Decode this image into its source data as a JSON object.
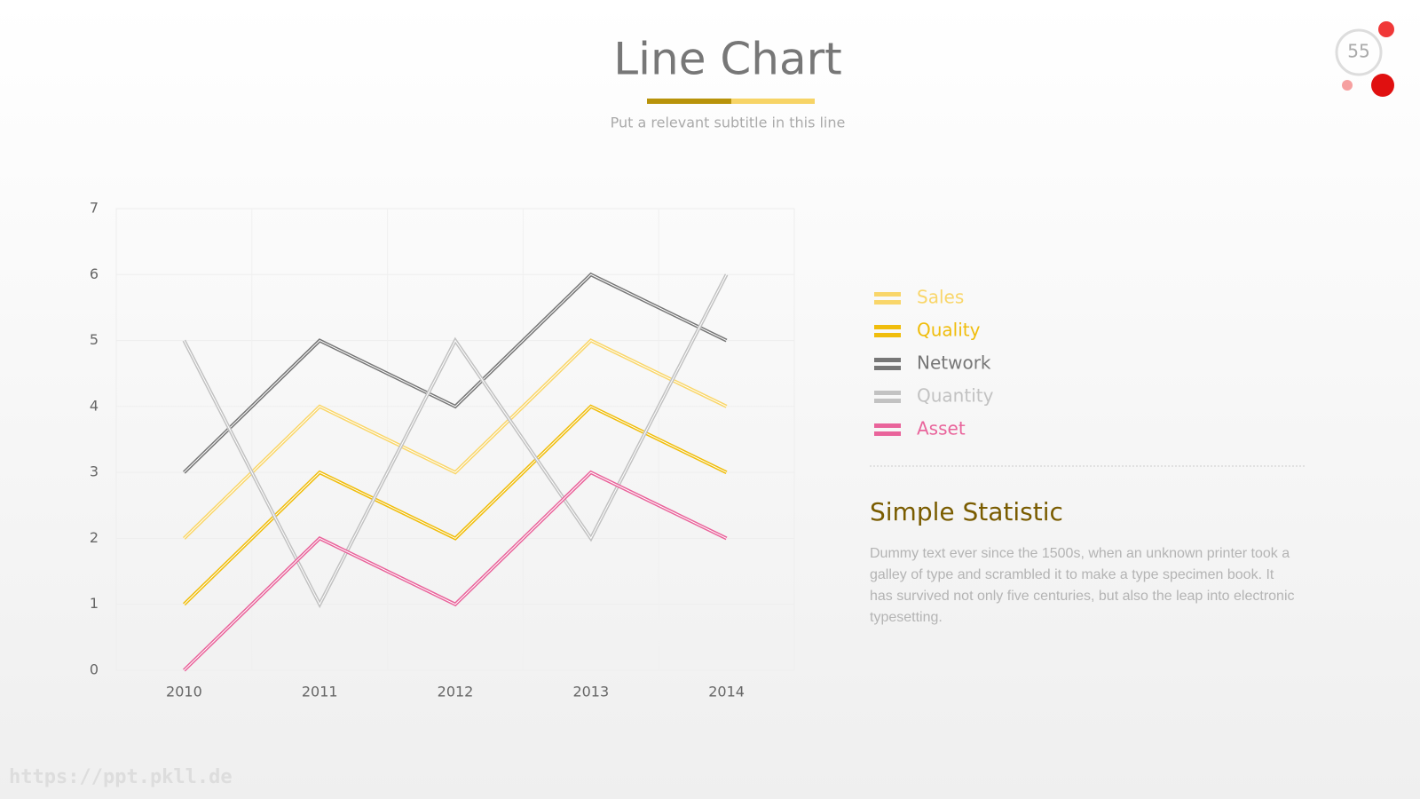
{
  "slide": {
    "subtitle": "Put a relevant subtitle in this line",
    "page_number": 55,
    "heading": "Simple Statistic",
    "paragraph": "Dummy text ever since the 1500s, when an unknown printer took a galley of type and scrambled it to make a type specimen book. It has survived not only five centuries, but also the leap into electronic typesetting.",
    "watermark": "https://ppt.pkll.de"
  },
  "chart_data": {
    "type": "line",
    "title": "Line Chart",
    "categories": [
      "2010",
      "2011",
      "2012",
      "2013",
      "2014"
    ],
    "series": [
      {
        "name": "Sales",
        "color": "#f9d66a",
        "values": [
          2,
          4,
          3,
          5,
          4
        ]
      },
      {
        "name": "Quality",
        "color": "#f0bd0c",
        "values": [
          1,
          3,
          2,
          4,
          3
        ]
      },
      {
        "name": "Network",
        "color": "#777777",
        "values": [
          3,
          5,
          4,
          6,
          5
        ]
      },
      {
        "name": "Quantity",
        "color": "#c2c2c2",
        "values": [
          5,
          1,
          5,
          2,
          6
        ]
      },
      {
        "name": "Asset",
        "color": "#e9649b",
        "values": [
          0,
          2,
          1,
          3,
          2
        ]
      }
    ],
    "ylim": [
      0,
      7
    ],
    "yticks": [
      0,
      1,
      2,
      3,
      4,
      5,
      6,
      7
    ],
    "grid": true,
    "legend": "right"
  }
}
